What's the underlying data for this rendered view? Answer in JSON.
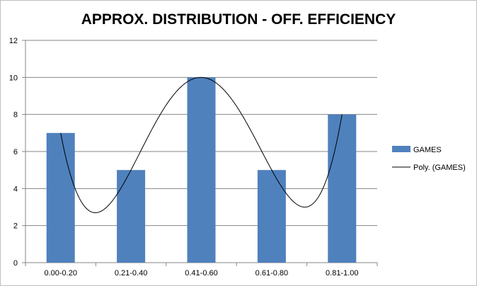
{
  "chart_data": {
    "type": "bar",
    "title": "APPROX. DISTRIBUTION - OFF. EFFICIENCY",
    "categories": [
      "0.00-0.20",
      "0.21-0.40",
      "0.41-0.60",
      "0.61-0.80",
      "0.81-1.00"
    ],
    "series": [
      {
        "name": "GAMES",
        "type": "bar",
        "values": [
          7,
          5,
          10,
          5,
          8
        ],
        "color": "#4f81bd"
      }
    ],
    "trendline": {
      "name": "Poly. (GAMES)",
      "type": "polynomial",
      "order": 4,
      "color": "#000000"
    },
    "ylim": [
      0,
      12
    ],
    "yticks": [
      0,
      2,
      4,
      6,
      8,
      10,
      12
    ],
    "grid": true,
    "legend": "right",
    "xlabel": "",
    "ylabel": ""
  }
}
